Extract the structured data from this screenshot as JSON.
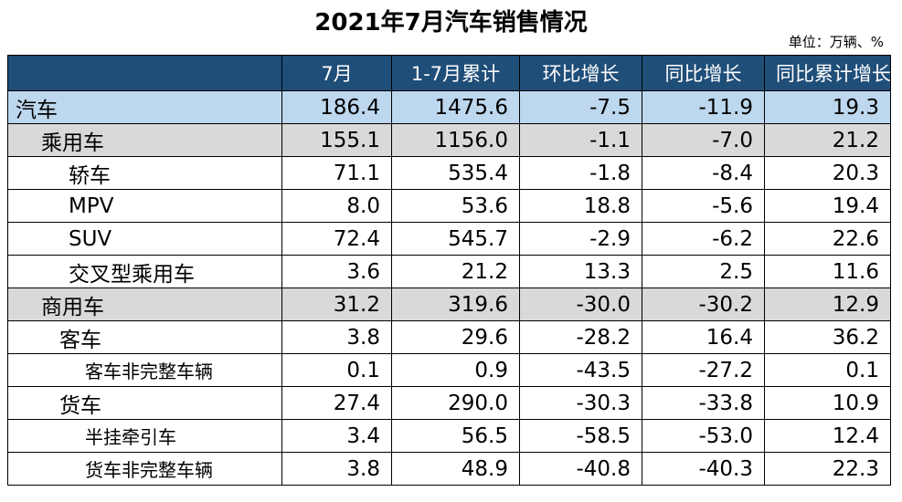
{
  "title": "2021年7月汽车销售情况",
  "unit": "单位：万辆、%",
  "table": {
    "headers": [
      "",
      "7月",
      "1-7月累计",
      "环比增长",
      "同比增长",
      "同比累计增长"
    ],
    "rows": [
      {
        "name": "汽车",
        "values": [
          "186.4",
          "1475.6",
          "-7.5",
          "-11.9",
          "19.3"
        ]
      },
      {
        "name": "乘用车",
        "values": [
          "155.1",
          "1156.0",
          "-1.1",
          "-7.0",
          "21.2"
        ]
      },
      {
        "name": "轿车",
        "values": [
          "71.1",
          "535.4",
          "-1.8",
          "-8.4",
          "20.3"
        ]
      },
      {
        "name": "MPV",
        "values": [
          "8.0",
          "53.6",
          "18.8",
          "-5.6",
          "19.4"
        ]
      },
      {
        "name": "SUV",
        "values": [
          "72.4",
          "545.7",
          "-2.9",
          "-6.2",
          "22.6"
        ]
      },
      {
        "name": "交叉型乘用车",
        "values": [
          "3.6",
          "21.2",
          "13.3",
          "2.5",
          "11.6"
        ]
      },
      {
        "name": "商用车",
        "values": [
          "31.2",
          "319.6",
          "-30.0",
          "-30.2",
          "12.9"
        ]
      },
      {
        "name": "客车",
        "values": [
          "3.8",
          "29.6",
          "-28.2",
          "16.4",
          "36.2"
        ]
      },
      {
        "name": "客车非完整车辆",
        "values": [
          "0.1",
          "0.9",
          "-43.5",
          "-27.2",
          "0.1"
        ]
      },
      {
        "name": "货车",
        "values": [
          "27.4",
          "290.0",
          "-30.3",
          "-33.8",
          "10.9"
        ]
      },
      {
        "name": "半挂牵引车",
        "values": [
          "3.4",
          "56.5",
          "-58.5",
          "-53.0",
          "12.4"
        ]
      },
      {
        "name": "货车非完整车辆",
        "values": [
          "3.8",
          "48.9",
          "-40.8",
          "-40.3",
          "22.3"
        ]
      }
    ]
  },
  "colors": {
    "header_bg": "#1f4e79",
    "header_text": "#ffffff",
    "total_row_bg": "#bdd7ee",
    "group_row_bg": "#d9d9d9"
  }
}
